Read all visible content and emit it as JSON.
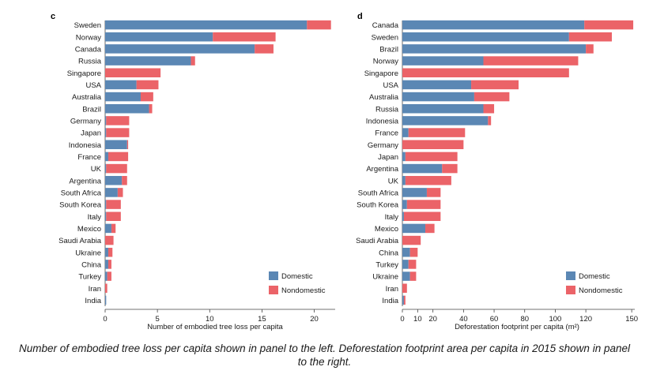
{
  "colors": {
    "domestic": "#5b87b4",
    "nondomestic": "#eb6368",
    "axis": "#444444"
  },
  "caption": "Number of embodied tree loss per capita shown in panel to the left. Deforestation footprint area per capita in 2015 shown in panel to the right.",
  "chart_data": [
    {
      "type": "bar",
      "orientation": "horizontal",
      "stacked": true,
      "panel_label": "c",
      "title": "",
      "xlabel": "Number of embodied tree loss per capita",
      "ylabel": "",
      "xlim": [
        0,
        22
      ],
      "xticks": [
        0,
        5,
        10,
        15,
        20
      ],
      "legend_position": "bottom-right",
      "categories": [
        "Sweden",
        "Norway",
        "Canada",
        "Russia",
        "Singapore",
        "USA",
        "Australia",
        "Brazil",
        "Germany",
        "Japan",
        "Indonesia",
        "France",
        "UK",
        "Argentina",
        "South Africa",
        "South Korea",
        "Italy",
        "Mexico",
        "Saudi Arabia",
        "Ukraine",
        "China",
        "Turkey",
        "Iran",
        "India"
      ],
      "series": [
        {
          "name": "Domestic",
          "values": [
            19.3,
            10.3,
            14.3,
            8.2,
            0.0,
            3.0,
            3.4,
            4.2,
            0.1,
            0.1,
            2.1,
            0.3,
            0.1,
            1.6,
            1.2,
            0.1,
            0.1,
            0.6,
            0.0,
            0.3,
            0.3,
            0.2,
            0.0,
            0.1
          ]
        },
        {
          "name": "Nondomestic",
          "values": [
            2.3,
            6.0,
            1.8,
            0.4,
            5.3,
            2.1,
            1.2,
            0.3,
            2.2,
            2.2,
            0.1,
            1.9,
            2.0,
            0.5,
            0.5,
            1.4,
            1.4,
            0.4,
            0.8,
            0.4,
            0.3,
            0.4,
            0.2,
            0.0
          ]
        }
      ]
    },
    {
      "type": "bar",
      "orientation": "horizontal",
      "stacked": true,
      "panel_label": "d",
      "title": "",
      "xlabel": "Deforestation footprint per capita (m²)",
      "ylabel": "",
      "xlim": [
        0,
        152
      ],
      "xticks": [
        0,
        10,
        20,
        40,
        60,
        80,
        100,
        120,
        150
      ],
      "legend_position": "bottom-right",
      "categories": [
        "Canada",
        "Sweden",
        "Brazil",
        "Norway",
        "Singapore",
        "USA",
        "Australia",
        "Russia",
        "Indonesia",
        "France",
        "Germany",
        "Japan",
        "Argentina",
        "UK",
        "South Africa",
        "South Korea",
        "Italy",
        "Mexico",
        "Saudi Arabia",
        "China",
        "Turkey",
        "Ukraine",
        "Iran",
        "India"
      ],
      "series": [
        {
          "name": "Domestic",
          "values": [
            119,
            109,
            120,
            53,
            0,
            45,
            47,
            53,
            56,
            4,
            0,
            2,
            26,
            2,
            16,
            3,
            1,
            15,
            0,
            5,
            4,
            5,
            0,
            1
          ]
        },
        {
          "name": "Nondomestic",
          "values": [
            32,
            28,
            5,
            62,
            109,
            31,
            23,
            7,
            2,
            37,
            40,
            34,
            10,
            30,
            9,
            22,
            24,
            6,
            12,
            5,
            5,
            4,
            3,
            1
          ]
        }
      ]
    }
  ]
}
